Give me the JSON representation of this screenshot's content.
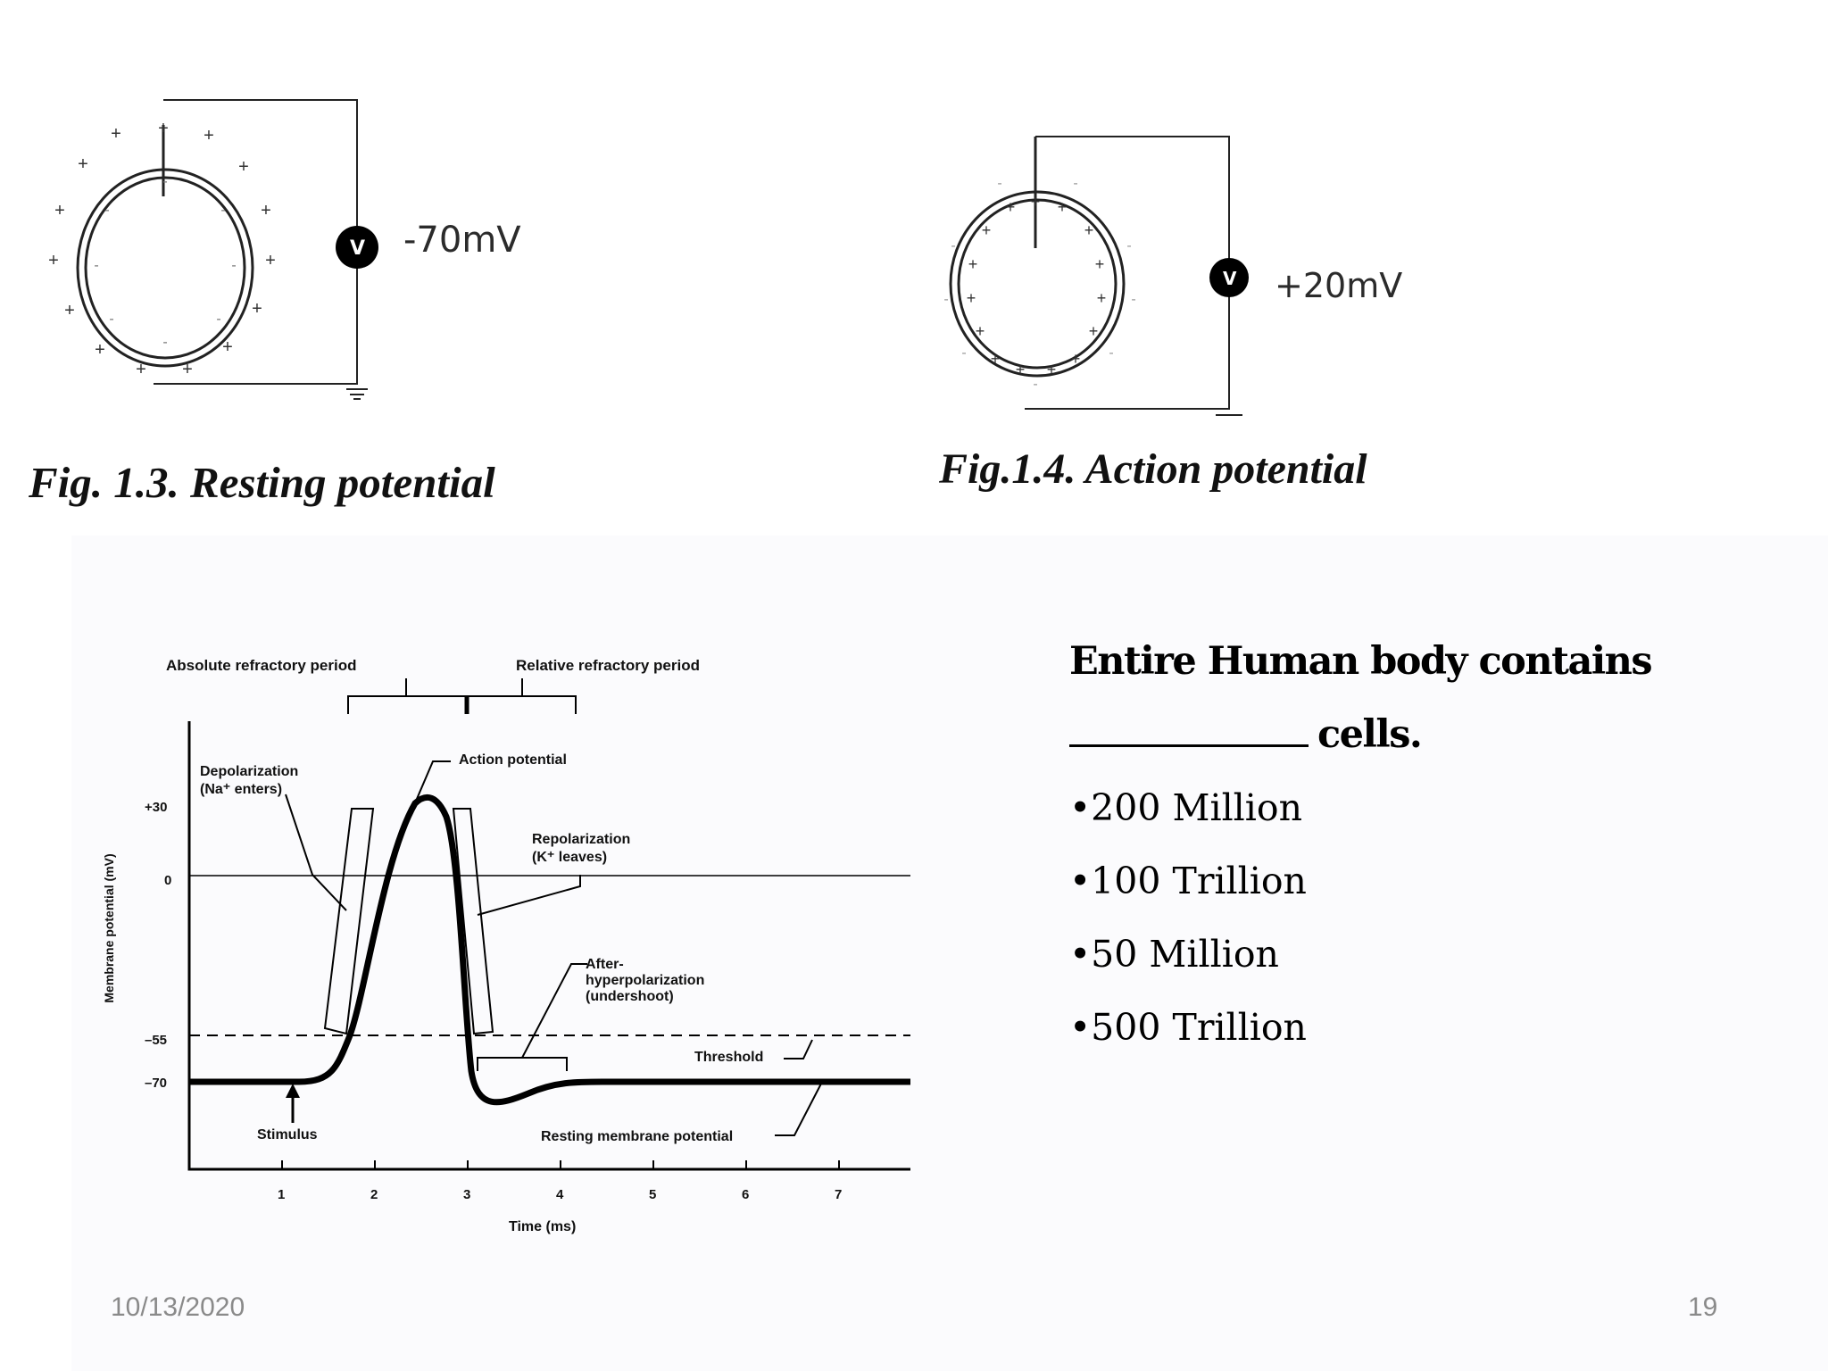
{
  "fig_resting": {
    "caption": "Fig. 1.3. Resting potential",
    "meter_label": "V",
    "reading": "-70mV"
  },
  "fig_action": {
    "caption": "Fig.1.4. Action potential",
    "meter_label": "V",
    "reading": "+20mV"
  },
  "graph": {
    "absolute_refractory": "Absolute refractory period",
    "relative_refractory": "Relative refractory period",
    "depolarization_line1": "Depolarization",
    "depolarization_line2": "(Na⁺ enters)",
    "action_potential": "Action potential",
    "repolarization_line1": "Repolarization",
    "repolarization_line2": "(K⁺ leaves)",
    "after_line1": "After-",
    "after_line2": "hyperpolarization",
    "after_line3": "(undershoot)",
    "threshold": "Threshold",
    "stimulus": "Stimulus",
    "resting_membrane": "Resting membrane potential",
    "ylabel": "Membrane potential (mV)",
    "xlabel": "Time (ms)",
    "y_ticks": [
      "+30",
      "0",
      "–55",
      "–70"
    ],
    "x_ticks": [
      "1",
      "2",
      "3",
      "4",
      "5",
      "6",
      "7"
    ]
  },
  "question": {
    "line1": "Entire Human body contains",
    "line2": "cells.",
    "options": [
      "•200 Million",
      "•100 Trillion",
      "•50 Million",
      "•500 Trillion"
    ]
  },
  "footer": {
    "date": "10/13/2020",
    "page": "19"
  }
}
